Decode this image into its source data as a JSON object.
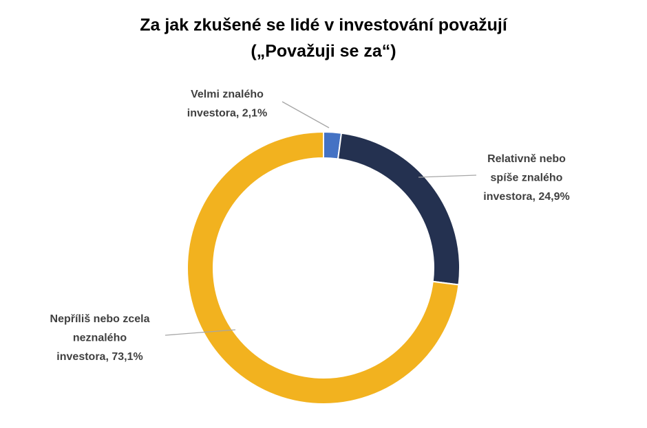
{
  "chart_data": {
    "type": "donut",
    "title": [
      "Za jak zkušené se lidé v investování považují",
      "(„Považuji se za“)"
    ],
    "values": [
      2.1,
      24.9,
      73.1
    ],
    "value_labels": [
      "Velmi znalého investora, 2,1%",
      "Relativně nebo spíše znalého investora, 24,9%",
      "Nepříliš nebo zcela neznalého investora, 73,1%"
    ],
    "colors": [
      "#4472c4",
      "#243150",
      "#f2b21f"
    ]
  }
}
